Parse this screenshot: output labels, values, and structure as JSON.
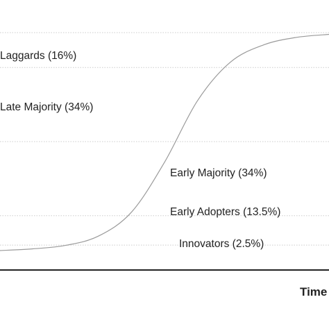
{
  "chart_data": {
    "type": "line",
    "title": "",
    "xlabel": "Time",
    "ylabel": "",
    "grid": true,
    "curve": "S-shaped cumulative adoption curve",
    "x": [
      0,
      10,
      20,
      30,
      40,
      50,
      60,
      70,
      80,
      90,
      100
    ],
    "series": [
      {
        "name": "",
        "values": [
          0.0,
          0.8,
          2.4,
          6.7,
          17.7,
          40.5,
          68.7,
          86.4,
          94.3,
          97.8,
          99.2
        ]
      }
    ],
    "ylim": [
      0,
      100
    ],
    "gridlines_at": [
      2.5,
      16,
      50,
      84,
      100
    ],
    "annotations": [
      {
        "label": "Laggards (16%)",
        "y": 92
      },
      {
        "label": "Late Majority (34%)",
        "y": 67
      },
      {
        "label": "Early Majority (34%)",
        "y": 33
      },
      {
        "label": "Early Adopters (13.5%)",
        "y": 9.25
      },
      {
        "label": "Innovators (2.5%)",
        "y": 1.25
      }
    ],
    "colors": {
      "curve": "#9a9a9a",
      "grid": "#cccccc",
      "axis": "#222222",
      "text": "#222222"
    }
  }
}
